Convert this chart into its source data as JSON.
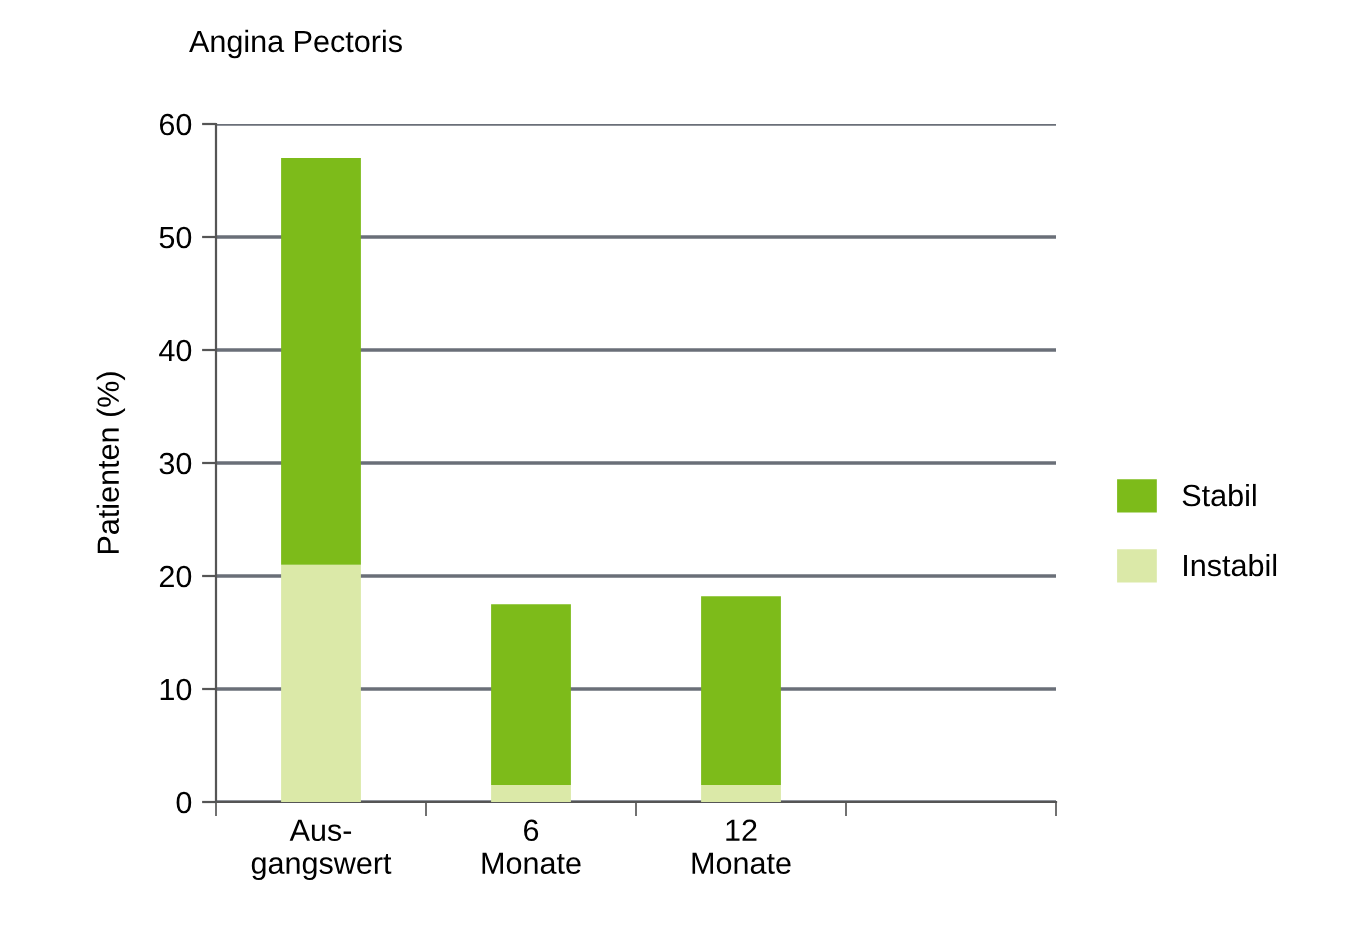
{
  "chart_data": {
    "type": "bar",
    "title": "Angina Pectoris",
    "ylabel": "Patienten (%)",
    "categories": [
      "Aus-\ngangswert",
      "6\nMonate",
      "12\nMonate",
      null
    ],
    "stacked": true,
    "series": [
      {
        "name": "Instabil",
        "color": "#dbe9a8",
        "values": [
          21,
          1.5,
          1.5,
          null
        ]
      },
      {
        "name": "Stabil",
        "color": "#7dbb1a",
        "values": [
          36,
          16,
          16.7,
          null
        ]
      }
    ],
    "ylim": [
      0,
      60
    ],
    "yticks": [
      0,
      10,
      20,
      30,
      40,
      50,
      60
    ],
    "grid": "y",
    "legend": "right"
  }
}
